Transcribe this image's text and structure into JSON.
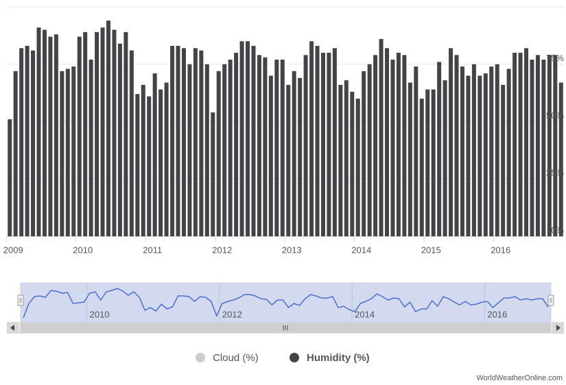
{
  "chart_data": {
    "type": "bar",
    "categories": [
      "2009",
      null,
      null,
      null,
      null,
      null,
      null,
      null,
      null,
      null,
      null,
      null,
      "2010",
      null,
      null,
      null,
      null,
      null,
      null,
      null,
      null,
      null,
      null,
      null,
      "2011",
      null,
      null,
      null,
      null,
      null,
      null,
      null,
      null,
      null,
      null,
      null,
      "2012",
      null,
      null,
      null,
      null,
      null,
      null,
      null,
      null,
      null,
      null,
      null,
      "2013",
      null,
      null,
      null,
      null,
      null,
      null,
      null,
      null,
      null,
      null,
      null,
      "2014",
      null,
      null,
      null,
      null,
      null,
      null,
      null,
      null,
      null,
      null,
      null,
      "2015",
      null,
      null,
      null,
      null,
      null,
      null,
      null,
      null,
      null,
      null,
      null,
      "2016",
      null,
      null,
      null,
      null,
      null,
      null,
      null,
      null,
      null,
      null,
      null
    ],
    "series": [
      {
        "name": "Humidity (%)",
        "color": "#434348",
        "values": [
          51,
          72,
          82,
          83,
          81,
          91,
          90,
          87,
          88,
          72,
          73,
          74,
          87,
          89,
          77,
          89,
          91,
          94,
          90,
          84,
          89,
          81,
          62,
          66,
          61,
          71,
          64,
          67,
          83,
          83,
          82,
          75,
          82,
          81,
          75,
          54,
          72,
          75,
          77,
          80,
          85,
          85,
          83,
          79,
          78,
          70,
          77,
          77,
          66,
          72,
          69,
          79,
          85,
          83,
          80,
          80,
          82,
          66,
          68,
          63,
          60,
          72,
          75,
          79,
          86,
          82,
          77,
          80,
          79,
          67,
          74,
          60,
          64,
          64,
          76,
          68,
          82,
          79,
          74,
          70,
          75,
          70,
          71,
          74,
          75,
          66,
          73,
          80,
          80,
          82,
          77,
          79,
          77,
          79,
          79,
          67
        ]
      }
    ],
    "hidden_series": [
      {
        "name": "Cloud (%)",
        "color": "#cccccc"
      }
    ],
    "ylim": [
      0,
      100
    ],
    "yticks": [
      {
        "value": 0,
        "label": "0%"
      },
      {
        "value": 25,
        "label": "25%"
      },
      {
        "value": 50,
        "label": "50%"
      },
      {
        "value": 75,
        "label": "75%"
      }
    ],
    "grid": true,
    "navigator": {
      "color": "#4a6fd0",
      "fill": "#d3daf0",
      "labels": [
        "2010",
        "2012",
        "2014",
        "2016"
      ]
    },
    "credit": "WorldWeatherOnline.com"
  }
}
